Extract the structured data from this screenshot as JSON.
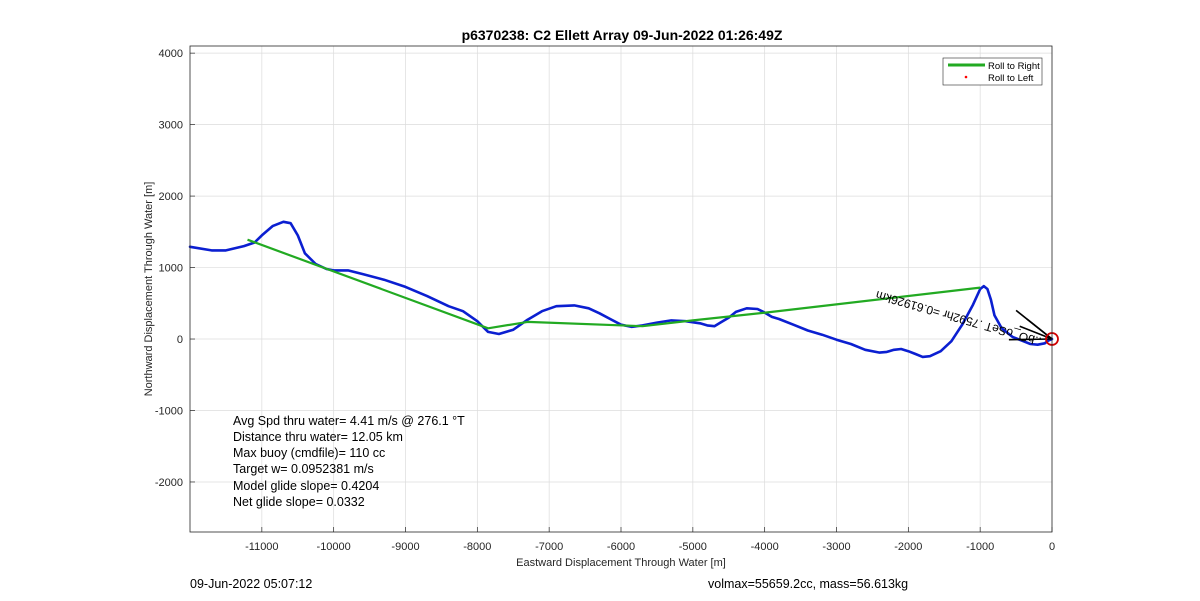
{
  "chart_data": {
    "type": "line",
    "title": "p6370238: C2 Ellett Array 09-Jun-2022 01:26:49Z",
    "xlabel": "Eastward Displacement Through Water [m]",
    "ylabel": "Northward Displacement Through Water [m]",
    "xlim": [
      -12000,
      0
    ],
    "ylim": [
      -2700,
      4100
    ],
    "xticks": [
      -11000,
      -10000,
      -9000,
      -8000,
      -7000,
      -6000,
      -5000,
      -4000,
      -3000,
      -2000,
      -1000,
      0
    ],
    "yticks": [
      -2000,
      -1000,
      0,
      1000,
      2000,
      3000,
      4000
    ],
    "grid": true,
    "legend_position": "top-right",
    "series": [
      {
        "name": "Roll to Right",
        "color": "#22aa22",
        "x": [
          -11200,
          -7850,
          -7300,
          -5700,
          -5000,
          -3900,
          -1000
        ],
        "y": [
          1390,
          150,
          240,
          180,
          260,
          380,
          720
        ]
      },
      {
        "name": "Roll to Left",
        "color": "#ff0000",
        "x": [],
        "y": []
      },
      {
        "color": "#0b1fd1",
        "x": [
          -12000,
          -11700,
          -11500,
          -11250,
          -11100,
          -11000,
          -10850,
          -10700,
          -10600,
          -10500,
          -10400,
          -10250,
          -10100,
          -10000,
          -9800,
          -9600,
          -9300,
          -9000,
          -8700,
          -8400,
          -8200,
          -8000,
          -7850,
          -7700,
          -7500,
          -7300,
          -7100,
          -6900,
          -6650,
          -6450,
          -6300,
          -6150,
          -6000,
          -5850,
          -5700,
          -5500,
          -5300,
          -5100,
          -4900,
          -4800,
          -4700,
          -4600,
          -4500,
          -4400,
          -4250,
          -4100,
          -4000,
          -3900,
          -3800,
          -3600,
          -3400,
          -3200,
          -3000,
          -2800,
          -2600,
          -2400,
          -2300,
          -2200,
          -2100,
          -2000,
          -1900,
          -1800,
          -1700,
          -1550,
          -1400,
          -1250,
          -1100,
          -1000,
          -950,
          -900,
          -850,
          -800,
          -700,
          -550,
          -400,
          -300,
          -200,
          -100,
          -50,
          0
        ],
        "y": [
          1290,
          1240,
          1240,
          1300,
          1350,
          1450,
          1580,
          1640,
          1620,
          1450,
          1200,
          1050,
          980,
          960,
          960,
          910,
          830,
          730,
          600,
          460,
          390,
          250,
          100,
          70,
          130,
          270,
          390,
          460,
          470,
          430,
          360,
          280,
          200,
          170,
          190,
          230,
          260,
          250,
          220,
          190,
          180,
          240,
          300,
          380,
          430,
          420,
          370,
          310,
          280,
          200,
          120,
          60,
          -10,
          -70,
          -150,
          -190,
          -180,
          -150,
          -140,
          -170,
          -210,
          -250,
          -240,
          -170,
          -30,
          200,
          480,
          700,
          740,
          700,
          550,
          330,
          150,
          30,
          -30,
          -70,
          -80,
          -60,
          -20,
          0
        ]
      },
      {
        "color": "#000000",
        "lines": [
          {
            "x": [
              -600,
              0
            ],
            "y": [
              -10,
              0
            ]
          },
          {
            "x": [
              -500,
              0
            ],
            "y": [
              400,
              0
            ]
          },
          {
            "x": [
              -450,
              0
            ],
            "y": [
              180,
              0
            ]
          },
          {
            "x": [
              -350,
              0
            ],
            "y": [
              280,
              0
            ]
          }
        ]
      }
    ],
    "end_marker": {
      "x": 0,
      "y": 0,
      "color": "#d00000"
    },
    "rotated_label": "..bO_oSeT .7592hr =0.61926km"
  },
  "annotations": [
    "Avg Spd thru water=  4.41 m/s @ 276.1 °T",
    "Distance thru water= 12.05 km",
    "Max buoy (cmdfile)= 110 cc",
    "Target w= 0.0952381 m/s",
    "Model glide slope= 0.4204",
    "Net glide slope= 0.0332"
  ],
  "footer": {
    "left": "09-Jun-2022 05:07:12",
    "right": "volmax=55659.2cc, mass=56.613kg"
  }
}
